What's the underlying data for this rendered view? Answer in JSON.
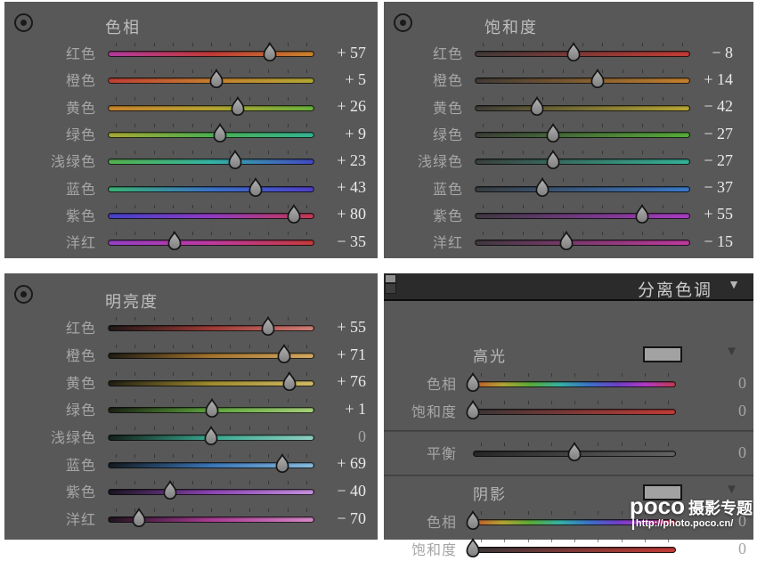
{
  "colors": {
    "page_bg": "#ffffff",
    "panel_bg": "#585858",
    "split_header_bg": "#2b2b2b",
    "label_text": "#a6a6a6",
    "title_text": "#bdbdbd",
    "value_text": "#e9e9e9",
    "value_zero_text": "#a5a5a5",
    "thumb_fill": "#9c9c9c",
    "swatch_fill": "#a2a2a2"
  },
  "icons": {
    "collapse_triangle": "▼",
    "targeted_adjustment": "circle-with-dot"
  },
  "hsl_panels": [
    {
      "id": "hue",
      "title": "色相",
      "rows": [
        {
          "key": "red",
          "label": "红色",
          "value": 57,
          "display": "+ 57",
          "range": "bipolar",
          "gradient": [
            "#b23b9e",
            "#bf3a38",
            "#c9832d"
          ]
        },
        {
          "key": "orange",
          "label": "橙色",
          "value": 5,
          "display": "+ 5",
          "range": "bipolar",
          "gradient": [
            "#c03d35",
            "#c57e2e",
            "#b0a833"
          ]
        },
        {
          "key": "yellow",
          "label": "黄色",
          "value": 26,
          "display": "+ 26",
          "range": "bipolar",
          "gradient": [
            "#c8832d",
            "#b5a433",
            "#68b23c"
          ]
        },
        {
          "key": "green",
          "label": "绿色",
          "value": 9,
          "display": "+ 9",
          "range": "bipolar",
          "gradient": [
            "#aaa934",
            "#4cb052",
            "#35b493"
          ]
        },
        {
          "key": "aqua",
          "label": "浅绿色",
          "value": 23,
          "display": "+ 23",
          "range": "bipolar",
          "gradient": [
            "#55b24a",
            "#34b4a4",
            "#4448c6"
          ]
        },
        {
          "key": "blue",
          "label": "蓝色",
          "value": 43,
          "display": "+ 43",
          "range": "bipolar",
          "gradient": [
            "#3db273",
            "#3b72c6",
            "#4f3fc8"
          ]
        },
        {
          "key": "purple",
          "label": "紫色",
          "value": 80,
          "display": "+ 80",
          "range": "bipolar",
          "gradient": [
            "#4442c8",
            "#8f3cc0",
            "#c43a52"
          ]
        },
        {
          "key": "magenta",
          "label": "洋红",
          "value": -35,
          "display": "− 35",
          "range": "bipolar",
          "gradient": [
            "#9340c4",
            "#bd3a9f",
            "#c43a3a"
          ]
        }
      ]
    },
    {
      "id": "sat",
      "title": "饱和度",
      "rows": [
        {
          "key": "red",
          "label": "红色",
          "value": -8,
          "display": "− 8",
          "range": "bipolar",
          "gradient": [
            "#403938",
            "#c23b36"
          ]
        },
        {
          "key": "orange",
          "label": "橙色",
          "value": 14,
          "display": "+ 14",
          "range": "bipolar",
          "gradient": [
            "#403a36",
            "#c5802c"
          ]
        },
        {
          "key": "yellow",
          "label": "黄色",
          "value": -42,
          "display": "− 42",
          "range": "bipolar",
          "gradient": [
            "#3f3d36",
            "#b8a735"
          ]
        },
        {
          "key": "green",
          "label": "绿色",
          "value": -27,
          "display": "− 27",
          "range": "bipolar",
          "gradient": [
            "#3b3f38",
            "#57ab3a"
          ]
        },
        {
          "key": "aqua",
          "label": "浅绿色",
          "value": -27,
          "display": "− 27",
          "range": "bipolar",
          "gradient": [
            "#3a403d",
            "#34b297"
          ]
        },
        {
          "key": "blue",
          "label": "蓝色",
          "value": -37,
          "display": "− 37",
          "range": "bipolar",
          "gradient": [
            "#393d40",
            "#3b79c8"
          ]
        },
        {
          "key": "purple",
          "label": "紫色",
          "value": 55,
          "display": "+ 55",
          "range": "bipolar",
          "gradient": [
            "#3e3940",
            "#a83cc3"
          ]
        },
        {
          "key": "magenta",
          "label": "洋红",
          "value": -15,
          "display": "− 15",
          "range": "bipolar",
          "gradient": [
            "#403940",
            "#be3a9e"
          ]
        }
      ]
    },
    {
      "id": "lum",
      "title": "明亮度",
      "rows": [
        {
          "key": "red",
          "label": "红色",
          "value": 55,
          "display": "+ 55",
          "range": "bipolar",
          "gradient": [
            "#201818",
            "#9e3a34",
            "#cf7f78"
          ]
        },
        {
          "key": "orange",
          "label": "橙色",
          "value": 71,
          "display": "+ 71",
          "range": "bipolar",
          "gradient": [
            "#201c14",
            "#a3742e",
            "#d4a963"
          ]
        },
        {
          "key": "yellow",
          "label": "黄色",
          "value": 76,
          "display": "+ 76",
          "range": "bipolar",
          "gradient": [
            "#201e14",
            "#a08c2e",
            "#d1ba68"
          ]
        },
        {
          "key": "green",
          "label": "绿色",
          "value": 1,
          "display": "+ 1",
          "range": "bipolar",
          "gradient": [
            "#1a2014",
            "#5da33c",
            "#a8d07c"
          ]
        },
        {
          "key": "aqua",
          "label": "浅绿色",
          "value": 0,
          "display": "0",
          "range": "bipolar",
          "gradient": [
            "#142019",
            "#3aa890",
            "#90d0c2"
          ]
        },
        {
          "key": "blue",
          "label": "蓝色",
          "value": 69,
          "display": "+ 69",
          "range": "bipolar",
          "gradient": [
            "#141a20",
            "#3a76b8",
            "#88bce0"
          ]
        },
        {
          "key": "purple",
          "label": "紫色",
          "value": -40,
          "display": "− 40",
          "range": "bipolar",
          "gradient": [
            "#1a1420",
            "#8a44b0",
            "#c490dc"
          ]
        },
        {
          "key": "magenta",
          "label": "洋红",
          "value": -70,
          "display": "− 70",
          "range": "bipolar",
          "gradient": [
            "#20141e",
            "#a83a92",
            "#d488c4"
          ]
        }
      ]
    }
  ],
  "split_panel": {
    "header": {
      "title": "分离色调"
    },
    "highlights": {
      "label": "高光",
      "swatch_color": "#a2a2a2",
      "rows": [
        {
          "key": "hue",
          "label": "色相",
          "value": 0,
          "display": "0",
          "range": "unipolar",
          "gradient": [
            "#c1582f",
            "#b3a335",
            "#57ab3a",
            "#36b0a5",
            "#3b72c6",
            "#7040c8",
            "#b03ac0",
            "#c23a50"
          ]
        },
        {
          "key": "saturation",
          "label": "饱和度",
          "value": 0,
          "display": "0",
          "range": "unipolar",
          "gradient": [
            "#3a3637",
            "#c23b36"
          ]
        }
      ]
    },
    "balance_row": {
      "key": "balance",
      "label": "平衡",
      "value": 0,
      "display": "0",
      "range": "bipolar",
      "gradient": [
        "#262626",
        "#636363"
      ]
    },
    "shadows": {
      "label": "阴影",
      "swatch_color": "#a2a2a2",
      "rows": [
        {
          "key": "hue",
          "label": "色相",
          "value": 0,
          "display": "0",
          "range": "unipolar",
          "gradient": [
            "#c1582f",
            "#b3a335",
            "#57ab3a",
            "#36b0a5",
            "#3b72c6",
            "#7040c8",
            "#b03ac0",
            "#c23a50"
          ]
        },
        {
          "key": "saturation",
          "label": "饱和度",
          "value": 0,
          "display": "0",
          "range": "unipolar",
          "gradient": [
            "#3a3637",
            "#c23b36"
          ]
        }
      ]
    }
  },
  "watermark": {
    "brand": "poco",
    "brand_suffix": "摄影专题",
    "url": "http://photo.poco.cn/"
  }
}
